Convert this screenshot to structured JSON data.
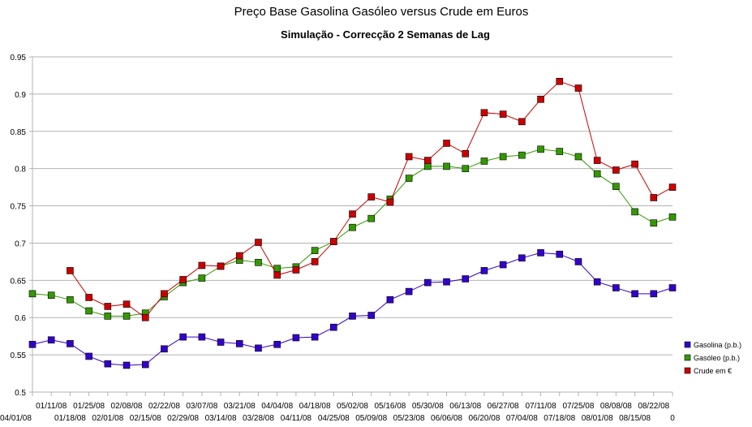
{
  "chart_data": {
    "type": "line",
    "title": "Preço Base Gasolina Gasóleo versus Crude em Euros",
    "subtitle": "Simulação - Correcção 2 Semanas de Lag",
    "ylim": [
      0.5,
      0.95
    ],
    "yticks": [
      "0.5",
      "0.55",
      "0.6",
      "0.65",
      "0.7",
      "0.75",
      "0.8",
      "0.85",
      "0.9",
      "0.95"
    ],
    "grid": "horizontal",
    "legend_position": "right",
    "categories": [
      "04/01/08",
      "01/11/08",
      "01/18/08",
      "01/25/08",
      "02/01/08",
      "02/08/08",
      "02/15/08",
      "02/22/08",
      "02/29/08",
      "03/07/08",
      "03/14/08",
      "03/21/08",
      "03/28/08",
      "04/04/08",
      "04/11/08",
      "04/18/08",
      "04/25/08",
      "05/02/08",
      "05/09/08",
      "05/16/08",
      "05/23/08",
      "05/30/08",
      "06/06/08",
      "06/13/08",
      "06/20/08",
      "06/27/08",
      "07/04/08",
      "07/11/08",
      "07/18/08",
      "07/25/08",
      "08/01/08",
      "08/08/08",
      "08/15/08",
      "08/22/08",
      "0"
    ],
    "series": [
      {
        "name": "Gasolina (p.b.)",
        "color": "#3300cc",
        "values": [
          0.564,
          0.57,
          0.565,
          0.548,
          0.538,
          0.536,
          0.537,
          0.558,
          0.574,
          0.574,
          0.567,
          0.565,
          0.559,
          0.564,
          0.573,
          0.574,
          0.587,
          0.602,
          0.603,
          0.624,
          0.635,
          0.647,
          0.648,
          0.652,
          0.663,
          0.671,
          0.68,
          0.687,
          0.685,
          0.675,
          0.648,
          0.64,
          0.632,
          0.632,
          0.64
        ]
      },
      {
        "name": "Gasóleo (p.b.)",
        "color": "#339900",
        "values": [
          0.632,
          0.63,
          0.624,
          0.609,
          0.602,
          0.602,
          0.606,
          0.628,
          0.647,
          0.653,
          0.669,
          0.677,
          0.674,
          0.666,
          0.668,
          0.69,
          0.702,
          0.721,
          0.733,
          0.759,
          0.787,
          0.803,
          0.803,
          0.8,
          0.81,
          0.816,
          0.818,
          0.826,
          0.823,
          0.816,
          0.793,
          0.776,
          0.742,
          0.727,
          0.735
        ]
      },
      {
        "name": "Crude em €",
        "color": "#cc0000",
        "values": [
          null,
          null,
          0.663,
          0.627,
          0.615,
          0.618,
          0.6,
          0.632,
          0.651,
          0.67,
          0.669,
          0.683,
          0.701,
          0.657,
          0.664,
          0.675,
          0.702,
          0.739,
          0.762,
          0.755,
          0.816,
          0.811,
          0.834,
          0.82,
          0.875,
          0.873,
          0.863,
          0.893,
          0.917,
          0.908,
          0.811,
          0.798,
          0.806,
          0.761,
          0.775
        ]
      }
    ]
  }
}
